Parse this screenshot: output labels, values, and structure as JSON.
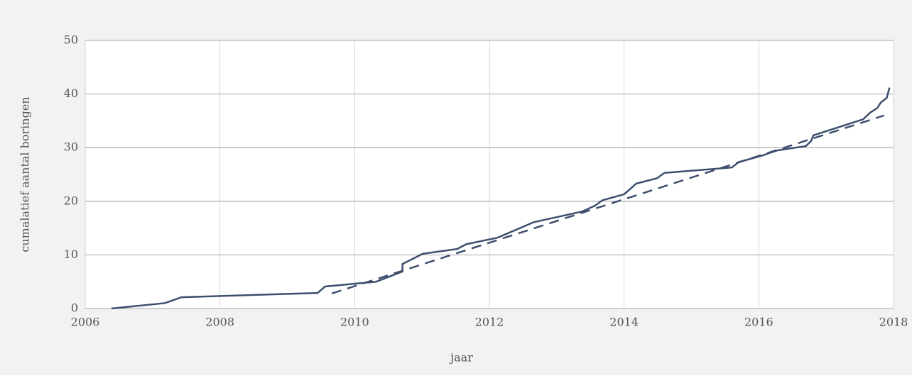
{
  "chart_data": {
    "type": "line",
    "xlabel": "jaar",
    "ylabel": "cumalatief aantal boringen",
    "xlim": [
      2006,
      2018
    ],
    "xticks": [
      2006,
      2008,
      2010,
      2012,
      2014,
      2016,
      2018
    ],
    "ylim": [
      0,
      50
    ],
    "yticks": [
      0,
      10,
      20,
      30,
      40,
      50
    ],
    "grid": true,
    "series": [
      {
        "color": "#3d4f6e",
        "dashed": false,
        "x": [
          2006.39,
          2007.18,
          2007.43,
          2009.45,
          2009.56,
          2009.98,
          2010.32,
          2010.71,
          2010.71,
          2011.01,
          2011.52,
          2011.66,
          2012.12,
          2012.66,
          2013.38,
          2013.57,
          2013.68,
          2014.0,
          2014.1,
          2014.18,
          2014.49,
          2014.6,
          2015.6,
          2015.7,
          2016.07,
          2016.18,
          2016.28,
          2016.7,
          2016.78,
          2016.81,
          2017.55,
          2017.65,
          2017.76,
          2017.81,
          2017.9,
          2017.94
        ],
        "values": [
          0,
          1,
          2.1,
          2.9,
          4.1,
          4.6,
          5.0,
          6.9,
          8.3,
          10.2,
          11.1,
          12.0,
          13.2,
          16.1,
          18.1,
          19.2,
          20.2,
          21.3,
          22.4,
          23.3,
          24.3,
          25.3,
          26.3,
          27.3,
          28.6,
          29.1,
          29.5,
          30.3,
          31.3,
          32.3,
          35.3,
          36.5,
          37.4,
          38.4,
          39.3,
          41.2
        ]
      },
      {
        "color": "#3d4f6e",
        "dashed": true,
        "x": [
          2009.66,
          2017.86
        ],
        "values": [
          2.8,
          36.0
        ]
      }
    ]
  }
}
